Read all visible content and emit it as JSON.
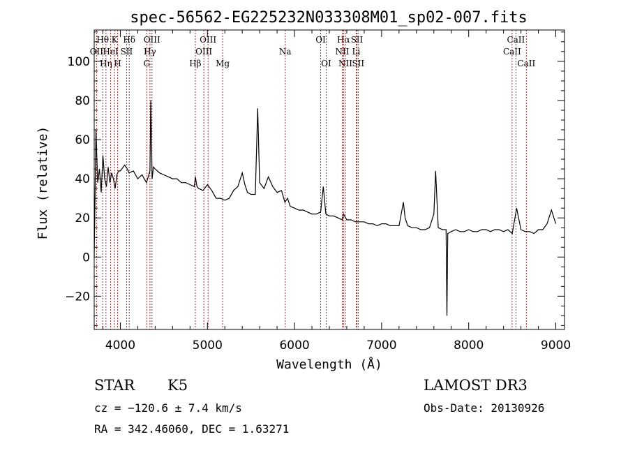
{
  "chart_data": {
    "type": "line",
    "title": "spec-56562-EG225232N033308M01_sp02-007.fits",
    "xlabel": "Wavelength (Å)",
    "ylabel": "Flux (relative)",
    "xlim": [
      3700,
      9100
    ],
    "ylim": [
      -37,
      116
    ],
    "x_ticks": [
      4000,
      5000,
      6000,
      7000,
      8000,
      9000
    ],
    "y_ticks": [
      -20,
      0,
      20,
      40,
      60,
      80,
      100
    ],
    "grid": false,
    "series": [
      {
        "x": [
          3700,
          3720,
          3740,
          3760,
          3780,
          3800,
          3820,
          3840,
          3860,
          3880,
          3900,
          3920,
          3940,
          3960,
          3980,
          4000,
          4050,
          4080,
          4100,
          4150,
          4200,
          4250,
          4300,
          4340,
          4350,
          4365,
          4380,
          4400,
          4450,
          4500,
          4550,
          4600,
          4650,
          4700,
          4750,
          4800,
          4850,
          4862,
          4880,
          4900,
          4950,
          5000,
          5050,
          5100,
          5150,
          5200,
          5250,
          5300,
          5350,
          5400,
          5430,
          5460,
          5500,
          5550,
          5577,
          5600,
          5650,
          5700,
          5750,
          5800,
          5850,
          5890,
          5920,
          5950,
          6000,
          6050,
          6100,
          6150,
          6200,
          6250,
          6300,
          6330,
          6360,
          6400,
          6450,
          6500,
          6550,
          6563,
          6600,
          6650,
          6700,
          6750,
          6800,
          6850,
          6900,
          6950,
          7000,
          7050,
          7100,
          7150,
          7200,
          7250,
          7270,
          7300,
          7350,
          7400,
          7450,
          7500,
          7550,
          7600,
          7620,
          7650,
          7700,
          7740,
          7750,
          7760,
          7800,
          7850,
          7900,
          7950,
          8000,
          8050,
          8100,
          8150,
          8200,
          8250,
          8300,
          8350,
          8400,
          8450,
          8500,
          8550,
          8600,
          8650,
          8700,
          8750,
          8800,
          8850,
          8900,
          8950,
          9000
        ],
        "y": [
          0,
          65,
          38,
          45,
          33,
          52,
          40,
          36,
          46,
          38,
          43,
          40,
          35,
          42,
          44,
          44,
          47,
          45,
          43,
          44,
          40,
          42,
          38,
          44,
          80,
          40,
          46,
          45,
          43,
          42,
          41,
          40,
          40,
          38,
          38,
          37,
          36,
          41,
          36,
          35,
          34,
          37,
          34,
          30,
          30,
          29,
          30,
          34,
          36,
          43,
          37,
          33,
          32,
          32,
          76,
          38,
          35,
          41,
          36,
          33,
          34,
          28,
          30,
          26,
          25,
          24,
          24,
          23,
          22,
          22,
          23,
          36,
          22,
          21,
          21,
          20,
          19,
          22,
          19,
          19,
          18,
          18,
          18,
          17,
          17,
          16,
          17,
          17,
          16,
          16,
          16,
          28,
          20,
          16,
          15,
          15,
          14,
          14,
          15,
          22,
          44,
          15,
          14,
          14,
          -30,
          12,
          13,
          14,
          13,
          13,
          14,
          13,
          13,
          14,
          14,
          13,
          14,
          14,
          13,
          14,
          12,
          25,
          14,
          13,
          13,
          12,
          14,
          14,
          17,
          24,
          17
        ]
      }
    ],
    "line_markers": [
      {
        "x": 3798,
        "label": "Hθ",
        "row": 1
      },
      {
        "x": 3727,
        "label": "OII",
        "row": 2
      },
      {
        "x": 3835,
        "label": "Hη",
        "row": 3
      },
      {
        "x": 3934,
        "label": "K",
        "row": 1
      },
      {
        "x": 3889,
        "label": "HeI",
        "row": 2
      },
      {
        "x": 3969,
        "label": "H",
        "row": 3
      },
      {
        "x": 4102,
        "label": "Hδ",
        "row": 1
      },
      {
        "x": 4072,
        "label": "SII",
        "row": 2
      },
      {
        "x": 4340,
        "label": "Hγ",
        "row": 2
      },
      {
        "x": 4304,
        "label": "G",
        "row": 3
      },
      {
        "x": 4363,
        "label": "OIII",
        "row": 1
      },
      {
        "x": 4861,
        "label": "Hβ",
        "row": 3
      },
      {
        "x": 5007,
        "label": "OIII",
        "row": 1
      },
      {
        "x": 4959,
        "label": "OIII",
        "row": 2
      },
      {
        "x": 5175,
        "label": "Mg",
        "row": 3
      },
      {
        "x": 5893,
        "label": "Na",
        "row": 2
      },
      {
        "x": 6300,
        "label": "OI",
        "row": 1
      },
      {
        "x": 6364,
        "label": "OI",
        "row": 3
      },
      {
        "x": 6563,
        "label": "Hα",
        "row": 1
      },
      {
        "x": 6548,
        "label": "NII",
        "row": 2
      },
      {
        "x": 6584,
        "label": "NII",
        "row": 3
      },
      {
        "x": 6717,
        "label": "SII",
        "row": 1
      },
      {
        "x": 6708,
        "label": "Li",
        "row": 2
      },
      {
        "x": 6731,
        "label": "SII",
        "row": 3
      },
      {
        "x": 8498,
        "label": "CaII",
        "row": 2
      },
      {
        "x": 8542,
        "label": "CaII",
        "row": 1
      },
      {
        "x": 8662,
        "label": "CaII",
        "row": 3
      }
    ],
    "marker_color": "#b22222"
  },
  "info": {
    "class_label": "STAR",
    "subclass_label": "K5",
    "survey_label": "LAMOST DR3",
    "cz_text": "cz = −120.6 ± 7.4 km/s",
    "obs_date_text": "Obs-Date: 20130926",
    "coords_text": "RA = 342.46060, DEC =   1.63271"
  }
}
